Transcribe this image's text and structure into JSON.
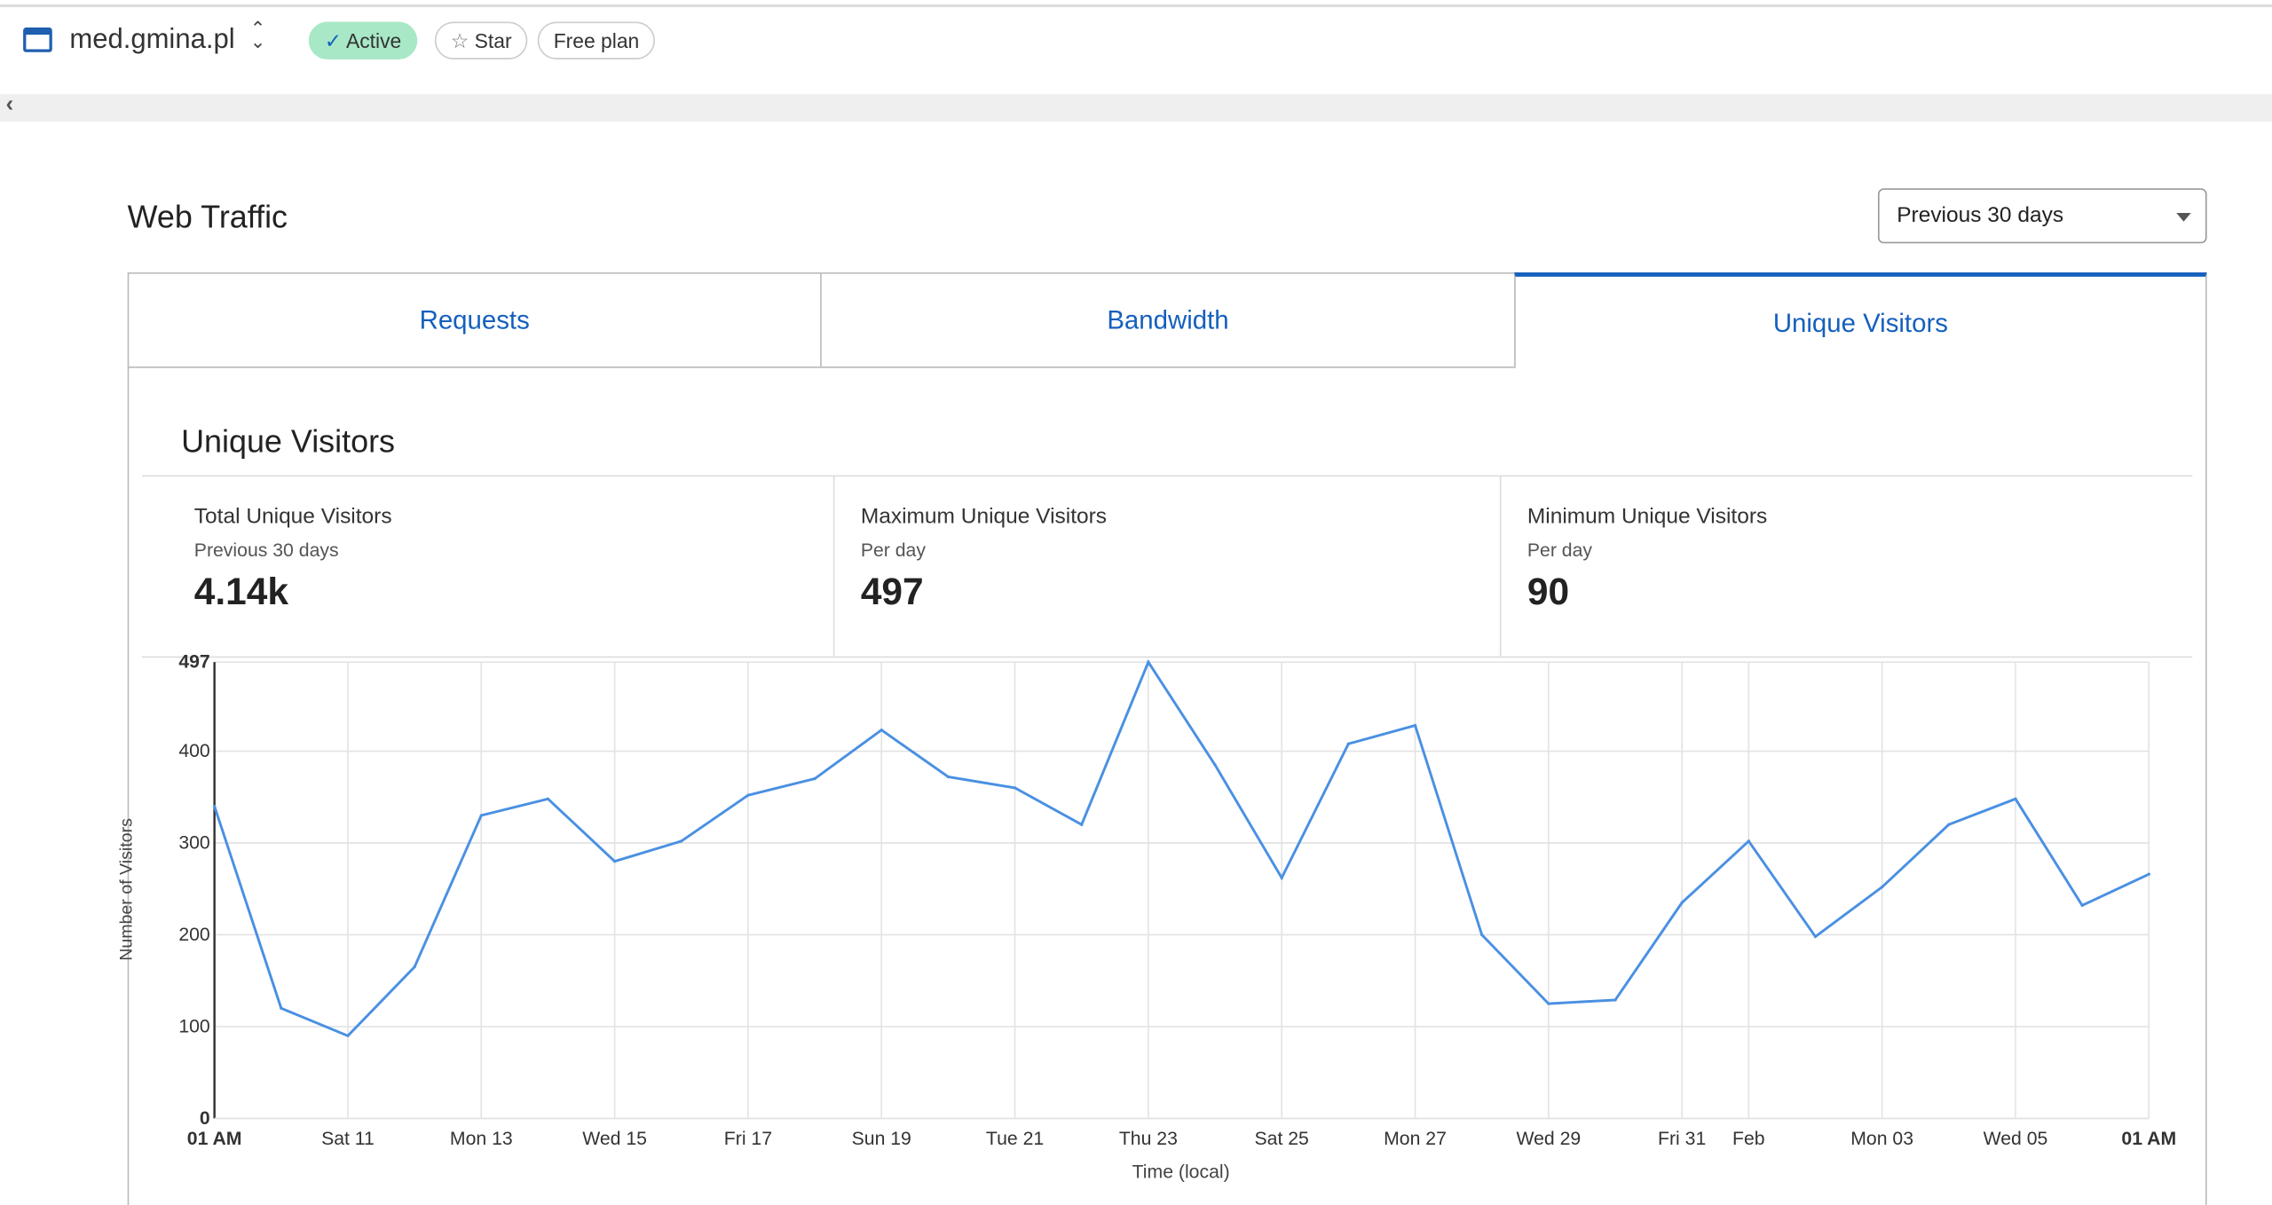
{
  "header": {
    "site_name": "med.gmina.pl",
    "status_badge": "Active",
    "star_label": "Star",
    "plan_badge": "Free plan"
  },
  "page": {
    "title": "Web Traffic",
    "range_select": "Previous 30 days"
  },
  "tabs": [
    {
      "label": "Requests",
      "active": false
    },
    {
      "label": "Bandwidth",
      "active": false
    },
    {
      "label": "Unique Visitors",
      "active": true
    }
  ],
  "section": {
    "title": "Unique Visitors",
    "stats": [
      {
        "label": "Total Unique Visitors",
        "sub": "Previous 30 days",
        "value": "4.14k"
      },
      {
        "label": "Maximum Unique Visitors",
        "sub": "Per day",
        "value": "497"
      },
      {
        "label": "Minimum Unique Visitors",
        "sub": "Per day",
        "value": "90"
      }
    ]
  },
  "colors": {
    "accent": "#1560bd",
    "line": "#4a90e2",
    "active_badge": "#a9e8c6"
  },
  "chart_data": {
    "type": "line",
    "xlabel": "Time (local)",
    "ylabel": "Number of Visitors",
    "ylim": [
      0,
      497
    ],
    "yticks": [
      {
        "value": 0,
        "label": "0",
        "bold": true
      },
      {
        "value": 100,
        "label": "100",
        "bold": false
      },
      {
        "value": 200,
        "label": "200",
        "bold": false
      },
      {
        "value": 300,
        "label": "300",
        "bold": false
      },
      {
        "value": 400,
        "label": "400",
        "bold": false
      },
      {
        "value": 497,
        "label": "497",
        "bold": true
      }
    ],
    "xticks": [
      {
        "index": 0,
        "label": "01 AM",
        "bold": true
      },
      {
        "index": 2,
        "label": "Sat 11",
        "bold": false
      },
      {
        "index": 4,
        "label": "Mon 13",
        "bold": false
      },
      {
        "index": 6,
        "label": "Wed 15",
        "bold": false
      },
      {
        "index": 8,
        "label": "Fri 17",
        "bold": false
      },
      {
        "index": 10,
        "label": "Sun 19",
        "bold": false
      },
      {
        "index": 12,
        "label": "Tue 21",
        "bold": false
      },
      {
        "index": 14,
        "label": "Thu 23",
        "bold": false
      },
      {
        "index": 16,
        "label": "Sat 25",
        "bold": false
      },
      {
        "index": 18,
        "label": "Mon 27",
        "bold": false
      },
      {
        "index": 20,
        "label": "Wed 29",
        "bold": false
      },
      {
        "index": 22,
        "label": "Fri 31",
        "bold": false
      },
      {
        "index": 23,
        "label": "Feb",
        "bold": false
      },
      {
        "index": 25,
        "label": "Mon 03",
        "bold": false
      },
      {
        "index": 27,
        "label": "Wed 05",
        "bold": false
      },
      {
        "index": 29,
        "label": "01 AM",
        "bold": true
      }
    ],
    "series": [
      {
        "name": "Unique Visitors",
        "values": [
          340,
          120,
          90,
          165,
          330,
          348,
          280,
          302,
          352,
          370,
          423,
          372,
          360,
          320,
          497,
          385,
          262,
          408,
          428,
          200,
          125,
          129,
          235,
          302,
          198,
          252,
          320,
          348,
          232,
          266
        ]
      }
    ]
  }
}
